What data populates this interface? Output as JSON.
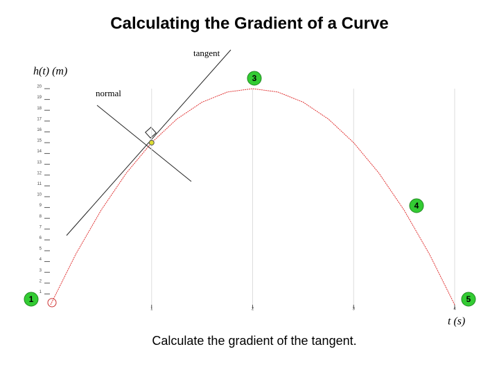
{
  "chart_data": {
    "type": "line",
    "title": "Calculating the Gradient of a Curve",
    "y_label": "h(t) (m)",
    "x_label": "t (s)",
    "annotations": {
      "tangent": "tangent",
      "normal": "normal"
    },
    "markers": [
      "1",
      "3",
      "4",
      "5"
    ],
    "caption": "Calculate the gradient of the tangent.",
    "x": [
      0,
      0.25,
      0.5,
      0.75,
      1,
      1.25,
      1.5,
      1.75,
      2,
      2.25,
      2.5,
      2.75,
      3,
      3.25,
      3.5,
      3.75,
      4
    ],
    "series": [
      {
        "color": "#e03030",
        "values": [
          0,
          4.6875,
          8.75,
          12.1875,
          15,
          17.1875,
          18.75,
          19.6875,
          20,
          19.6875,
          18.75,
          17.1875,
          15,
          12.1875,
          8.75,
          4.6875,
          0
        ]
      }
    ],
    "point": {
      "x": 1,
      "y": 15
    },
    "xlim": [
      0,
      4
    ],
    "ylim": [
      0,
      20
    ],
    "xticks": [
      1,
      2,
      3,
      4
    ],
    "yticks": [
      1,
      2,
      3,
      4,
      5,
      6,
      7,
      8,
      9,
      10,
      11,
      12,
      13,
      14,
      15,
      16,
      17,
      18,
      19,
      20
    ],
    "grid": true
  }
}
